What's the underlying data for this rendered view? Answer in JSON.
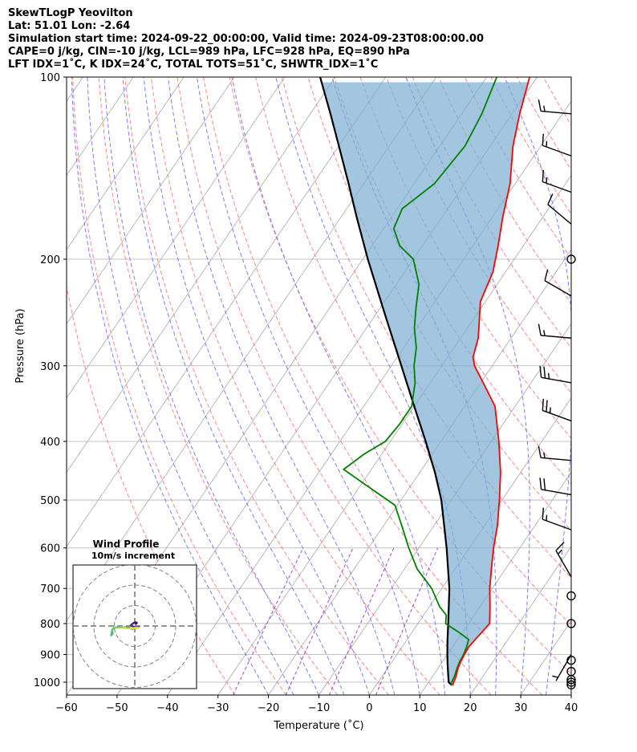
{
  "title_lines": [
    "SkewTLogP Yeovilton",
    "Lat: 51.01   Lon: -2.64",
    "Simulation start time: 2024-09-22_00:00:00, Valid time: 2024-09-23T08:00:00.00",
    "CAPE=0 j/kg, CIN=-10 j/kg, LCL=989 hPa, LFC=928 hPa, EQ=890 hPa",
    "LFT IDX=1˚C, K IDX=24˚C, TOTAL TOTS=51˚C, SHWTR_IDX=1˚C"
  ],
  "chart_data": {
    "type": "line",
    "subtype": "skew-t log-p",
    "xlabel": "Temperature (˚C)",
    "ylabel": "Pressure (hPa)",
    "xlim": [
      -60,
      40
    ],
    "ylim": [
      1050,
      100
    ],
    "y_scale": "log",
    "x_ticks": [
      -60,
      -50,
      -40,
      -30,
      -20,
      -10,
      0,
      10,
      20,
      30,
      40
    ],
    "y_ticks": [
      100,
      200,
      300,
      400,
      500,
      600,
      700,
      800,
      900,
      1000
    ],
    "grid": true,
    "colors": {
      "temperature": "#ff0000",
      "dewpoint": "#008000",
      "parcel": "#000000",
      "cape_fill": "#7aaed3",
      "dry_adiabat": "#ff6666",
      "moist_adiabat": "#6666ff",
      "mixing_ratio": "#9933cc",
      "isotherm": "#aaaaaa"
    },
    "series": [
      {
        "key": "temperature",
        "points": [
          [
            1012,
            15.2
          ],
          [
            1000,
            15.0
          ],
          [
            975,
            14.6
          ],
          [
            950,
            14.0
          ],
          [
            925,
            13.6
          ],
          [
            900,
            13.4
          ],
          [
            875,
            13.2
          ],
          [
            850,
            13.5
          ],
          [
            800,
            14.2
          ],
          [
            750,
            12.0
          ],
          [
            700,
            9.5
          ],
          [
            650,
            7.2
          ],
          [
            600,
            4.8
          ],
          [
            550,
            2.5
          ],
          [
            500,
            -0.5
          ],
          [
            450,
            -4.0
          ],
          [
            400,
            -8.5
          ],
          [
            350,
            -14.0
          ],
          [
            320,
            -19.5
          ],
          [
            300,
            -23.5
          ],
          [
            290,
            -25.0
          ],
          [
            270,
            -26.5
          ],
          [
            250,
            -29.0
          ],
          [
            235,
            -31.0
          ],
          [
            210,
            -32.5
          ],
          [
            190,
            -35.0
          ],
          [
            170,
            -38.0
          ],
          [
            150,
            -41.0
          ],
          [
            130,
            -45.5
          ],
          [
            115,
            -48.5
          ],
          [
            100,
            -51.5
          ]
        ]
      },
      {
        "key": "dewpoint",
        "points": [
          [
            1012,
            14.8
          ],
          [
            1000,
            14.6
          ],
          [
            975,
            14.3
          ],
          [
            950,
            13.8
          ],
          [
            925,
            13.4
          ],
          [
            900,
            13.2
          ],
          [
            875,
            12.8
          ],
          [
            850,
            12.2
          ],
          [
            825,
            9.0
          ],
          [
            800,
            5.5
          ],
          [
            775,
            4.5
          ],
          [
            750,
            2.0
          ],
          [
            700,
            -2.0
          ],
          [
            650,
            -7.5
          ],
          [
            600,
            -12.0
          ],
          [
            550,
            -16.5
          ],
          [
            510,
            -20.5
          ],
          [
            470,
            -29.5
          ],
          [
            445,
            -35.5
          ],
          [
            420,
            -33.5
          ],
          [
            400,
            -31.0
          ],
          [
            375,
            -30.5
          ],
          [
            350,
            -30.5
          ],
          [
            320,
            -33.0
          ],
          [
            300,
            -35.5
          ],
          [
            280,
            -37.5
          ],
          [
            260,
            -40.5
          ],
          [
            240,
            -43.0
          ],
          [
            220,
            -45.5
          ],
          [
            200,
            -50.0
          ],
          [
            190,
            -54.5
          ],
          [
            178,
            -58.0
          ],
          [
            165,
            -59.0
          ],
          [
            150,
            -56.0
          ],
          [
            130,
            -55.0
          ],
          [
            115,
            -56.0
          ],
          [
            100,
            -58.0
          ]
        ]
      },
      {
        "key": "parcel",
        "points": [
          [
            1012,
            15.0
          ],
          [
            1000,
            14.0
          ],
          [
            975,
            13.0
          ],
          [
            950,
            12.0
          ],
          [
            925,
            11.0
          ],
          [
            900,
            10.0
          ],
          [
            850,
            8.0
          ],
          [
            800,
            6.0
          ],
          [
            700,
            1.5
          ],
          [
            600,
            -4.5
          ],
          [
            500,
            -12.0
          ],
          [
            450,
            -17.0
          ],
          [
            400,
            -23.0
          ],
          [
            350,
            -30.0
          ],
          [
            300,
            -38.0
          ],
          [
            250,
            -47.5
          ],
          [
            200,
            -59.0
          ],
          [
            170,
            -67.0
          ],
          [
            150,
            -73.0
          ],
          [
            130,
            -80.0
          ],
          [
            115,
            -86.0
          ],
          [
            100,
            -93.0
          ]
        ]
      }
    ],
    "wind_barbs": [
      {
        "p": 1010,
        "calm": true
      },
      {
        "p": 1000,
        "calm": true
      },
      {
        "p": 990,
        "calm": true
      },
      {
        "p": 960,
        "calm": true
      },
      {
        "p": 920,
        "calm": true
      },
      {
        "p": 900,
        "speed_kt": 5,
        "dir": 210
      },
      {
        "p": 800,
        "calm": true
      },
      {
        "p": 720,
        "calm": true
      },
      {
        "p": 670,
        "speed_kt": 15,
        "dir": 330
      },
      {
        "p": 560,
        "speed_kt": 15,
        "dir": 290
      },
      {
        "p": 490,
        "speed_kt": 20,
        "dir": 280
      },
      {
        "p": 430,
        "speed_kt": 15,
        "dir": 275
      },
      {
        "p": 370,
        "speed_kt": 25,
        "dir": 290
      },
      {
        "p": 320,
        "speed_kt": 25,
        "dir": 280
      },
      {
        "p": 270,
        "speed_kt": 15,
        "dir": 275
      },
      {
        "p": 230,
        "speed_kt": 10,
        "dir": 300
      },
      {
        "p": 200,
        "calm": true
      },
      {
        "p": 175,
        "speed_kt": 10,
        "dir": 310
      },
      {
        "p": 155,
        "speed_kt": 15,
        "dir": 290
      },
      {
        "p": 135,
        "speed_kt": 15,
        "dir": 290
      },
      {
        "p": 115,
        "speed_kt": 15,
        "dir": 275
      }
    ],
    "hodograph": {
      "title": "Wind Profile",
      "subtitle": "10m/s increment",
      "ring_step": 10,
      "rings": 3,
      "points": [
        [
          0.5,
          1.0
        ],
        [
          1.0,
          1.5
        ],
        [
          0.5,
          1.8
        ],
        [
          -0.5,
          1.5
        ],
        [
          -1.5,
          0.8
        ],
        [
          -2.0,
          0.3
        ],
        [
          0.0,
          -0.6
        ],
        [
          1.8,
          -0.4
        ],
        [
          1.2,
          -0.9
        ],
        [
          -1.5,
          -1.4
        ],
        [
          -3.0,
          -0.8
        ],
        [
          -5.5,
          -0.6
        ],
        [
          -8.0,
          -0.5
        ],
        [
          -9.5,
          -0.8
        ],
        [
          -10.5,
          -1.2
        ],
        [
          -11.0,
          -2.0
        ],
        [
          -11.2,
          -3.3
        ],
        [
          -11.5,
          -4.5
        ],
        [
          -10.8,
          -3.8
        ],
        [
          -11.0,
          -1.8
        ],
        [
          -10.0,
          -0.8
        ],
        [
          -8.0,
          -0.6
        ],
        [
          -6.0,
          -0.6
        ],
        [
          -4.0,
          -1.0
        ],
        [
          -2.0,
          -1.2
        ],
        [
          0.0,
          -1.0
        ],
        [
          1.5,
          -0.8
        ]
      ]
    }
  }
}
